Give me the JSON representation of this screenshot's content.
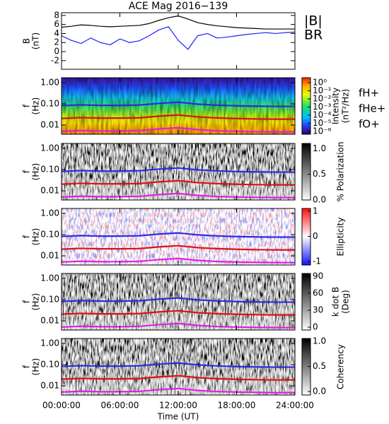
{
  "chart_data": [
    {
      "type": "line",
      "title": "ACE Mag 2016−139",
      "ylabel": [
        "B",
        "(nT)"
      ],
      "x": [
        0,
        1,
        2,
        3,
        4,
        5,
        6,
        7,
        8,
        9,
        10,
        11,
        12,
        13,
        14,
        15,
        16,
        17,
        18,
        19,
        20,
        21,
        22,
        23,
        24
      ],
      "xlim": [
        0,
        24
      ],
      "xticks": [
        0,
        6,
        12,
        18,
        24
      ],
      "ylim": [
        -3.9,
        8.6
      ],
      "yticks": [
        -2,
        0,
        2,
        4,
        6,
        8
      ],
      "legend": "outside right",
      "series": [
        {
          "name": "|B|",
          "color": "#000000",
          "values": [
            5.4,
            5.6,
            5.9,
            5.8,
            5.6,
            5.5,
            5.6,
            5.7,
            5.8,
            6.2,
            6.9,
            7.5,
            7.9,
            7.2,
            6.4,
            6.0,
            5.7,
            5.5,
            5.3,
            5.2,
            5.1,
            5.0,
            5.0,
            5.0,
            5.0
          ]
        },
        {
          "name": "BR",
          "color": "#1f1fff",
          "values": [
            3.5,
            2.5,
            1.8,
            3.0,
            2.0,
            1.5,
            2.8,
            2.0,
            2.4,
            3.5,
            4.8,
            5.5,
            2.5,
            0.5,
            3.5,
            4.0,
            3.0,
            3.2,
            3.5,
            3.8,
            4.0,
            4.2,
            4.0,
            4.2,
            4.3
          ]
        }
      ]
    },
    {
      "type": "spectrogram",
      "ylabel": [
        "f",
        "(Hz)"
      ],
      "log_y": true,
      "ylim": [
        0.0037,
        1.7
      ],
      "yticks": [
        {
          "value": 1,
          "label": "1.00"
        },
        {
          "value": 0.1,
          "label": "0.10"
        },
        0.01
      ],
      "x": [
        0,
        2,
        4,
        6,
        8,
        10,
        12,
        14,
        16,
        18,
        20,
        22,
        24
      ],
      "xlim": [
        0,
        24
      ],
      "xticks": [
        0,
        6,
        12,
        18,
        24
      ],
      "colorbar": {
        "label": [
          "Intensity",
          "(nT²/Hz)"
        ],
        "colormap": "jet",
        "log": true,
        "lim": [
          4.5e-07,
          4
        ],
        "ticks": [
          {
            "value": 1,
            "label": "10⁰"
          },
          {
            "value": 0.1,
            "label": "10⁻¹"
          },
          {
            "value": 0.01,
            "label": "10⁻²"
          },
          {
            "value": 0.001,
            "label": "10⁻³"
          },
          {
            "value": 0.0001,
            "label": "10⁻⁴"
          },
          {
            "value": 1e-05,
            "label": "10⁻⁵"
          },
          {
            "value": 1e-06,
            "label": "10⁻⁶"
          }
        ]
      },
      "series": [
        {
          "name": "fH+",
          "color": "#2a2ae6",
          "values": [
            0.082,
            0.09,
            0.085,
            0.085,
            0.088,
            0.105,
            0.12,
            0.097,
            0.087,
            0.081,
            0.078,
            0.076,
            0.076
          ]
        },
        {
          "name": "fHe+",
          "color": "#e01010",
          "values": [
            0.0205,
            0.0225,
            0.0213,
            0.0213,
            0.022,
            0.0263,
            0.03,
            0.0243,
            0.0218,
            0.0203,
            0.0195,
            0.019,
            0.019
          ]
        },
        {
          "name": "fO+",
          "color": "#e020e0",
          "values": [
            0.0051,
            0.0056,
            0.0053,
            0.0053,
            0.0055,
            0.0066,
            0.0075,
            0.0061,
            0.0054,
            0.0051,
            0.0049,
            0.0048,
            0.0048
          ]
        }
      ]
    },
    {
      "type": "spectrogram",
      "ylabel": [
        "f",
        "(Hz)"
      ],
      "log_y": true,
      "ylim": [
        0.0037,
        1.7
      ],
      "yticks": [
        {
          "value": 1,
          "label": "1.00"
        },
        {
          "value": 0.1,
          "label": "0.10"
        },
        0.01
      ],
      "x": [
        0,
        2,
        4,
        6,
        8,
        10,
        12,
        14,
        16,
        18,
        20,
        22,
        24
      ],
      "xlim": [
        0,
        24
      ],
      "xticks": [
        0,
        6,
        12,
        18,
        24
      ],
      "colorbar": {
        "label": [
          "% Polarization"
        ],
        "colormap": "gray",
        "log": false,
        "lim": [
          0,
          1.1
        ],
        "ticks": [
          {
            "value": 0,
            "label": "0.0"
          },
          0.5,
          {
            "value": 1,
            "label": "1.0"
          }
        ]
      },
      "series": [
        {
          "color": "#2a2ae6",
          "values": [
            0.082,
            0.09,
            0.085,
            0.085,
            0.088,
            0.105,
            0.12,
            0.097,
            0.087,
            0.081,
            0.078,
            0.076,
            0.076
          ]
        },
        {
          "color": "#e01010",
          "values": [
            0.0205,
            0.0225,
            0.0213,
            0.0213,
            0.022,
            0.0263,
            0.03,
            0.0243,
            0.0218,
            0.0203,
            0.0195,
            0.019,
            0.019
          ]
        },
        {
          "color": "#e020e0",
          "values": [
            0.0051,
            0.0056,
            0.0053,
            0.0053,
            0.0055,
            0.0066,
            0.0075,
            0.0061,
            0.0054,
            0.0051,
            0.0049,
            0.0048,
            0.0048
          ]
        }
      ]
    },
    {
      "type": "spectrogram",
      "ylabel": [
        "f",
        "(Hz)"
      ],
      "log_y": true,
      "ylim": [
        0.0037,
        1.7
      ],
      "yticks": [
        {
          "value": 1,
          "label": "1.00"
        },
        {
          "value": 0.1,
          "label": "0.10"
        },
        0.01
      ],
      "x": [
        0,
        2,
        4,
        6,
        8,
        10,
        12,
        14,
        16,
        18,
        20,
        22,
        24
      ],
      "xlim": [
        0,
        24
      ],
      "xticks": [
        0,
        6,
        12,
        18,
        24
      ],
      "colorbar": {
        "label": [
          "Ellipticity"
        ],
        "colormap": "bwr",
        "log": false,
        "lim": [
          -1.14,
          1.11
        ],
        "ticks": [
          -1,
          0,
          1
        ]
      },
      "series": [
        {
          "color": "#2a2ae6",
          "values": [
            0.082,
            0.09,
            0.085,
            0.085,
            0.088,
            0.105,
            0.12,
            0.097,
            0.087,
            0.081,
            0.078,
            0.076,
            0.076
          ]
        },
        {
          "color": "#e01010",
          "values": [
            0.0205,
            0.0225,
            0.0213,
            0.0213,
            0.022,
            0.0263,
            0.03,
            0.0243,
            0.0218,
            0.0203,
            0.0195,
            0.019,
            0.019
          ]
        },
        {
          "color": "#e020e0",
          "values": [
            0.0051,
            0.0056,
            0.0053,
            0.0053,
            0.0055,
            0.0066,
            0.0075,
            0.0061,
            0.0054,
            0.0051,
            0.0049,
            0.0048,
            0.0048
          ]
        }
      ]
    },
    {
      "type": "spectrogram",
      "ylabel": [
        "f",
        "(Hz)"
      ],
      "log_y": true,
      "ylim": [
        0.0037,
        1.7
      ],
      "yticks": [
        {
          "value": 1,
          "label": "1.00"
        },
        {
          "value": 0.1,
          "label": "0.10"
        },
        0.01
      ],
      "x": [
        0,
        2,
        4,
        6,
        8,
        10,
        12,
        14,
        16,
        18,
        20,
        22,
        24
      ],
      "xlim": [
        0,
        24
      ],
      "xticks": [
        0,
        6,
        12,
        18,
        24
      ],
      "colorbar": {
        "label": [
          "k dot B",
          "(Deg)"
        ],
        "colormap": "gray",
        "log": false,
        "lim": [
          -5,
          95
        ],
        "ticks": [
          0,
          30,
          60,
          90
        ]
      },
      "series": [
        {
          "color": "#2a2ae6",
          "values": [
            0.082,
            0.09,
            0.085,
            0.085,
            0.088,
            0.105,
            0.12,
            0.097,
            0.087,
            0.081,
            0.078,
            0.076,
            0.076
          ]
        },
        {
          "color": "#e01010",
          "values": [
            0.0205,
            0.0225,
            0.0213,
            0.0213,
            0.022,
            0.0263,
            0.03,
            0.0243,
            0.0218,
            0.0203,
            0.0195,
            0.019,
            0.019
          ]
        },
        {
          "color": "#e020e0",
          "values": [
            0.0051,
            0.0056,
            0.0053,
            0.0053,
            0.0055,
            0.0066,
            0.0075,
            0.0061,
            0.0054,
            0.0051,
            0.0049,
            0.0048,
            0.0048
          ]
        }
      ]
    },
    {
      "type": "spectrogram",
      "ylabel": [
        "f",
        "(Hz)"
      ],
      "log_y": true,
      "ylim": [
        0.0037,
        1.7
      ],
      "yticks": [
        {
          "value": 1,
          "label": "1.00"
        },
        {
          "value": 0.1,
          "label": "0.10"
        },
        0.01
      ],
      "x": [
        0,
        2,
        4,
        6,
        8,
        10,
        12,
        14,
        16,
        18,
        20,
        22,
        24
      ],
      "xlim": [
        0,
        24
      ],
      "xticks": [
        {
          "value": 0,
          "label": "00:00:00"
        },
        {
          "value": 6,
          "label": "06:00:00"
        },
        {
          "value": 12,
          "label": "12:00:00"
        },
        {
          "value": 18,
          "label": "18:00:00"
        },
        {
          "value": 24,
          "label": "24:00:00"
        }
      ],
      "xlabel": "Time (UT)",
      "colorbar": {
        "label": [
          "Coherency"
        ],
        "colormap": "gray",
        "log": false,
        "lim": [
          -0.07,
          1.06
        ],
        "ticks": [
          {
            "value": 0,
            "label": "0.0"
          },
          0.5,
          {
            "value": 1,
            "label": "1.0"
          }
        ]
      },
      "series": [
        {
          "color": "#2a2ae6",
          "values": [
            0.082,
            0.09,
            0.085,
            0.085,
            0.088,
            0.105,
            0.12,
            0.097,
            0.087,
            0.081,
            0.078,
            0.076,
            0.076
          ]
        },
        {
          "color": "#e01010",
          "values": [
            0.0205,
            0.0225,
            0.0213,
            0.0213,
            0.022,
            0.0263,
            0.03,
            0.0243,
            0.0218,
            0.0203,
            0.0195,
            0.019,
            0.019
          ]
        },
        {
          "color": "#e020e0",
          "values": [
            0.0051,
            0.0056,
            0.0053,
            0.0053,
            0.0055,
            0.0066,
            0.0075,
            0.0061,
            0.0054,
            0.0051,
            0.0049,
            0.0048,
            0.0048
          ]
        }
      ]
    }
  ]
}
